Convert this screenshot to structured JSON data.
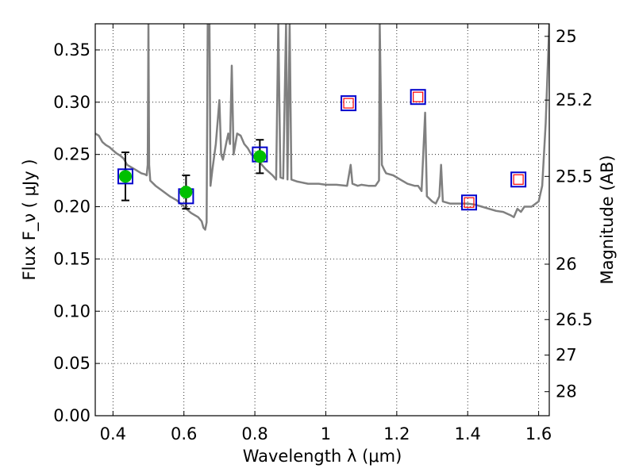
{
  "chart_data": {
    "type": "scatter",
    "xlabel": "Wavelength  λ (μm)",
    "ylabel": "Flux  F_ν  (  μJy )",
    "y2label": "Magnitude (AB)",
    "xlim": [
      0.35,
      1.63
    ],
    "ylim": [
      0.0,
      0.375
    ],
    "grid": true,
    "x_ticks": [
      0.4,
      0.6,
      0.8,
      1.0,
      1.2,
      1.4,
      1.6
    ],
    "x_tick_labels": [
      "0.4",
      "0.6",
      "0.8",
      "1",
      "1.2",
      "1.4",
      "1.6"
    ],
    "y_ticks": [
      0.0,
      0.05,
      0.1,
      0.15,
      0.2,
      0.25,
      0.3,
      0.35
    ],
    "y_tick_labels": [
      "0.00",
      "0.05",
      "0.10",
      "0.15",
      "0.20",
      "0.25",
      "0.30",
      "0.35"
    ],
    "y2_ticks": [
      {
        "label": "25",
        "flux": 0.363
      },
      {
        "label": "25.2",
        "flux": 0.302
      },
      {
        "label": "25.5",
        "flux": 0.229
      },
      {
        "label": "26",
        "flux": 0.145
      },
      {
        "label": "26.5",
        "flux": 0.092
      },
      {
        "label": "27",
        "flux": 0.058
      },
      {
        "label": "28",
        "flux": 0.023
      }
    ],
    "colors": {
      "model_line": "#808080",
      "observed_marker": "#00c000",
      "model_box": "#0000cc",
      "nir_box": "#ff0000"
    },
    "series": [
      {
        "type": "line",
        "points": [
          [
            0.35,
            0.27
          ],
          [
            0.36,
            0.268
          ],
          [
            0.37,
            0.262
          ],
          [
            0.38,
            0.259
          ],
          [
            0.39,
            0.257
          ],
          [
            0.4,
            0.254
          ],
          [
            0.41,
            0.251
          ],
          [
            0.42,
            0.249
          ],
          [
            0.43,
            0.246
          ],
          [
            0.44,
            0.24
          ],
          [
            0.45,
            0.238
          ],
          [
            0.46,
            0.236
          ],
          [
            0.47,
            0.234
          ],
          [
            0.48,
            0.232
          ],
          [
            0.49,
            0.231
          ],
          [
            0.495,
            0.23
          ],
          [
            0.498,
            0.24
          ],
          [
            0.5,
            0.375
          ],
          [
            0.502,
            0.24
          ],
          [
            0.505,
            0.225
          ],
          [
            0.52,
            0.22
          ],
          [
            0.54,
            0.215
          ],
          [
            0.56,
            0.21
          ],
          [
            0.58,
            0.206
          ],
          [
            0.6,
            0.2
          ],
          [
            0.62,
            0.194
          ],
          [
            0.64,
            0.19
          ],
          [
            0.65,
            0.186
          ],
          [
            0.655,
            0.18
          ],
          [
            0.66,
            0.178
          ],
          [
            0.664,
            0.185
          ],
          [
            0.667,
            0.375
          ],
          [
            0.672,
            0.375
          ],
          [
            0.675,
            0.22
          ],
          [
            0.68,
            0.235
          ],
          [
            0.69,
            0.26
          ],
          [
            0.7,
            0.302
          ],
          [
            0.705,
            0.25
          ],
          [
            0.71,
            0.245
          ],
          [
            0.72,
            0.262
          ],
          [
            0.725,
            0.27
          ],
          [
            0.73,
            0.26
          ],
          [
            0.735,
            0.335
          ],
          [
            0.74,
            0.25
          ],
          [
            0.75,
            0.27
          ],
          [
            0.76,
            0.268
          ],
          [
            0.77,
            0.26
          ],
          [
            0.78,
            0.256
          ],
          [
            0.79,
            0.25
          ],
          [
            0.8,
            0.248
          ],
          [
            0.81,
            0.245
          ],
          [
            0.82,
            0.24
          ],
          [
            0.83,
            0.236
          ],
          [
            0.84,
            0.233
          ],
          [
            0.85,
            0.23
          ],
          [
            0.86,
            0.226
          ],
          [
            0.866,
            0.375
          ],
          [
            0.872,
            0.228
          ],
          [
            0.88,
            0.227
          ],
          [
            0.888,
            0.375
          ],
          [
            0.892,
            0.226
          ],
          [
            0.898,
            0.375
          ],
          [
            0.903,
            0.226
          ],
          [
            0.92,
            0.224
          ],
          [
            0.95,
            0.222
          ],
          [
            0.98,
            0.222
          ],
          [
            1.0,
            0.221
          ],
          [
            1.03,
            0.221
          ],
          [
            1.06,
            0.22
          ],
          [
            1.07,
            0.24
          ],
          [
            1.075,
            0.222
          ],
          [
            1.09,
            0.22
          ],
          [
            1.1,
            0.221
          ],
          [
            1.12,
            0.22
          ],
          [
            1.14,
            0.22
          ],
          [
            1.15,
            0.225
          ],
          [
            1.152,
            0.375
          ],
          [
            1.158,
            0.24
          ],
          [
            1.165,
            0.235
          ],
          [
            1.17,
            0.232
          ],
          [
            1.19,
            0.23
          ],
          [
            1.21,
            0.226
          ],
          [
            1.23,
            0.222
          ],
          [
            1.25,
            0.22
          ],
          [
            1.26,
            0.22
          ],
          [
            1.27,
            0.215
          ],
          [
            1.28,
            0.29
          ],
          [
            1.285,
            0.21
          ],
          [
            1.3,
            0.205
          ],
          [
            1.31,
            0.203
          ],
          [
            1.32,
            0.21
          ],
          [
            1.325,
            0.24
          ],
          [
            1.33,
            0.205
          ],
          [
            1.35,
            0.203
          ],
          [
            1.38,
            0.203
          ],
          [
            1.4,
            0.203
          ],
          [
            1.42,
            0.202
          ],
          [
            1.44,
            0.2
          ],
          [
            1.46,
            0.198
          ],
          [
            1.48,
            0.196
          ],
          [
            1.5,
            0.195
          ],
          [
            1.52,
            0.192
          ],
          [
            1.53,
            0.19
          ],
          [
            1.54,
            0.198
          ],
          [
            1.55,
            0.195
          ],
          [
            1.56,
            0.2
          ],
          [
            1.58,
            0.2
          ],
          [
            1.6,
            0.205
          ],
          [
            1.61,
            0.22
          ],
          [
            1.62,
            0.28
          ],
          [
            1.63,
            0.375
          ]
        ]
      },
      {
        "type": "scatter",
        "points": [
          {
            "x": 0.435,
            "y": 0.229,
            "err": 0.023
          },
          {
            "x": 0.606,
            "y": 0.214,
            "err": 0.016
          },
          {
            "x": 0.814,
            "y": 0.248,
            "err": 0.016
          }
        ]
      },
      {
        "type": "box-markers",
        "points": [
          {
            "x": 0.435,
            "y": 0.229
          },
          {
            "x": 0.606,
            "y": 0.21
          },
          {
            "x": 0.814,
            "y": 0.25
          },
          {
            "x": 1.064,
            "y": 0.299
          },
          {
            "x": 1.26,
            "y": 0.305
          },
          {
            "x": 1.404,
            "y": 0.204
          },
          {
            "x": 1.543,
            "y": 0.226
          }
        ]
      },
      {
        "type": "box-markers",
        "points": [
          {
            "x": 1.064,
            "y": 0.299
          },
          {
            "x": 1.26,
            "y": 0.305
          },
          {
            "x": 1.404,
            "y": 0.204
          },
          {
            "x": 1.543,
            "y": 0.226
          }
        ]
      }
    ]
  }
}
